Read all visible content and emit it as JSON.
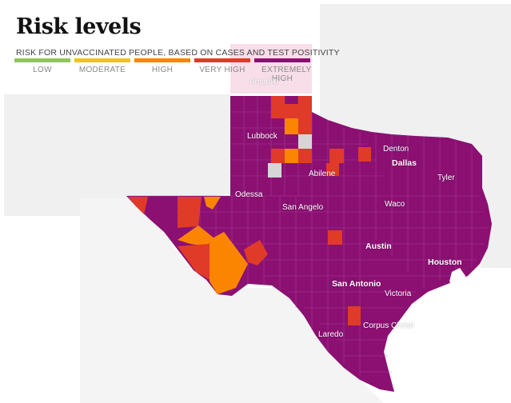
{
  "title": "Risk levels",
  "subtitle": "RISK FOR UNVACCINATED PEOPLE, BASED ON CASES AND TEST POSITIVITY",
  "colors": {
    "low": "#8fc65c",
    "moderate": "#f0c419",
    "high": "#fb8500",
    "very_high": "#e03a28",
    "extremely_high": "#8b1072",
    "no_data": "#d6d6d6"
  },
  "legend": [
    {
      "key": "low",
      "label": "LOW"
    },
    {
      "key": "moderate",
      "label": "MODERATE"
    },
    {
      "key": "high",
      "label": "HIGH"
    },
    {
      "key": "very_high",
      "label": "VERY HIGH"
    },
    {
      "key": "extremely_high",
      "label": "EXTREMELY HIGH"
    }
  ],
  "cities": [
    {
      "name": "Amarillo",
      "major": false
    },
    {
      "name": "Lubbock",
      "major": false
    },
    {
      "name": "Denton",
      "major": false
    },
    {
      "name": "Dallas",
      "major": true
    },
    {
      "name": "Abilene",
      "major": false
    },
    {
      "name": "Tyler",
      "major": false
    },
    {
      "name": "Odessa",
      "major": false
    },
    {
      "name": "San Angelo",
      "major": false
    },
    {
      "name": "Waco",
      "major": false
    },
    {
      "name": "Austin",
      "major": true
    },
    {
      "name": "Houston",
      "major": true
    },
    {
      "name": "San Antonio",
      "major": true
    },
    {
      "name": "Victoria",
      "major": false
    },
    {
      "name": "Corpus Christi",
      "major": false
    },
    {
      "name": "Laredo",
      "major": false
    }
  ]
}
